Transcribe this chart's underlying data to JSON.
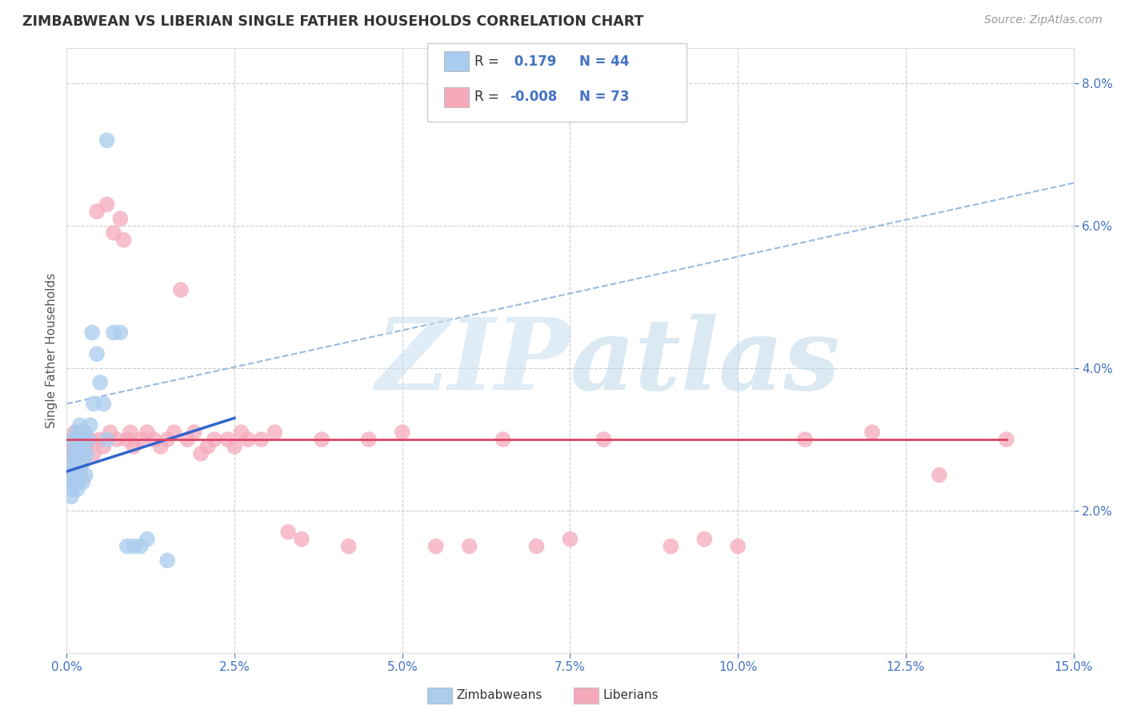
{
  "title": "ZIMBABWEAN VS LIBERIAN SINGLE FATHER HOUSEHOLDS CORRELATION CHART",
  "source": "Source: ZipAtlas.com",
  "ylabel": "Single Father Households",
  "r1": 0.179,
  "n1": 44,
  "r2": -0.008,
  "n2": 73,
  "color_blue": "#aaccee",
  "color_pink": "#f5aabb",
  "color_blue_line": "#3366cc",
  "color_pink_line": "#dd4466",
  "color_dashed": "#99bbdd",
  "xmin": 0.0,
  "xmax": 15.0,
  "ymin": 0.0,
  "ymax": 8.5,
  "yticks": [
    2.0,
    4.0,
    6.0,
    8.0
  ],
  "xticks": [
    0.0,
    2.5,
    5.0,
    7.5,
    10.0,
    12.5,
    15.0
  ],
  "zim_x": [
    0.05,
    0.07,
    0.08,
    0.09,
    0.1,
    0.1,
    0.11,
    0.12,
    0.13,
    0.14,
    0.15,
    0.15,
    0.16,
    0.17,
    0.18,
    0.18,
    0.19,
    0.2,
    0.2,
    0.21,
    0.22,
    0.23,
    0.24,
    0.25,
    0.26,
    0.27,
    0.28,
    0.3,
    0.32,
    0.35,
    0.38,
    0.4,
    0.45,
    0.5,
    0.55,
    0.6,
    0.7,
    0.8,
    0.9,
    1.0,
    1.1,
    1.2,
    1.5,
    0.6
  ],
  "zim_y": [
    2.5,
    2.2,
    2.8,
    2.3,
    2.6,
    3.0,
    2.4,
    2.7,
    2.5,
    2.9,
    2.6,
    3.1,
    2.3,
    2.8,
    2.4,
    3.0,
    2.7,
    2.5,
    3.2,
    2.6,
    2.8,
    3.0,
    2.4,
    2.9,
    2.7,
    3.1,
    2.5,
    2.8,
    3.0,
    3.2,
    4.5,
    3.5,
    4.2,
    3.8,
    3.5,
    3.0,
    4.5,
    4.5,
    1.5,
    1.5,
    1.5,
    1.6,
    1.3,
    7.2
  ],
  "lib_x": [
    0.05,
    0.07,
    0.08,
    0.09,
    0.1,
    0.11,
    0.12,
    0.13,
    0.14,
    0.15,
    0.16,
    0.17,
    0.18,
    0.19,
    0.2,
    0.21,
    0.22,
    0.23,
    0.24,
    0.25,
    0.27,
    0.3,
    0.35,
    0.4,
    0.45,
    0.5,
    0.55,
    0.6,
    0.65,
    0.7,
    0.75,
    0.8,
    0.85,
    0.9,
    0.95,
    1.0,
    1.1,
    1.2,
    1.3,
    1.4,
    1.5,
    1.6,
    1.7,
    1.8,
    1.9,
    2.0,
    2.1,
    2.2,
    2.4,
    2.5,
    2.6,
    2.7,
    2.9,
    3.1,
    3.3,
    3.5,
    3.8,
    4.2,
    4.5,
    5.0,
    5.5,
    6.0,
    6.5,
    7.0,
    7.5,
    8.0,
    9.0,
    9.5,
    10.0,
    11.0,
    12.0,
    13.0,
    14.0
  ],
  "lib_y": [
    2.8,
    2.5,
    2.9,
    3.0,
    2.6,
    2.7,
    3.1,
    2.4,
    2.8,
    2.5,
    2.9,
    3.0,
    2.7,
    2.6,
    2.8,
    2.5,
    3.0,
    2.7,
    2.9,
    2.8,
    3.1,
    2.9,
    3.0,
    2.8,
    6.2,
    3.0,
    2.9,
    6.3,
    3.1,
    5.9,
    3.0,
    6.1,
    5.8,
    3.0,
    3.1,
    2.9,
    3.0,
    3.1,
    3.0,
    2.9,
    3.0,
    3.1,
    5.1,
    3.0,
    3.1,
    2.8,
    2.9,
    3.0,
    3.0,
    2.9,
    3.1,
    3.0,
    3.0,
    3.1,
    1.7,
    1.6,
    3.0,
    1.5,
    3.0,
    3.1,
    1.5,
    1.5,
    3.0,
    1.5,
    1.6,
    3.0,
    1.5,
    1.6,
    1.5,
    3.0,
    3.1,
    2.5,
    3.0
  ],
  "blue_line": [
    [
      0.0,
      2.55
    ],
    [
      2.5,
      3.3
    ]
  ],
  "pink_line": [
    [
      0.0,
      3.0
    ],
    [
      14.0,
      3.0
    ]
  ],
  "dashed_line": [
    [
      0.0,
      3.5
    ],
    [
      15.0,
      6.6
    ]
  ]
}
